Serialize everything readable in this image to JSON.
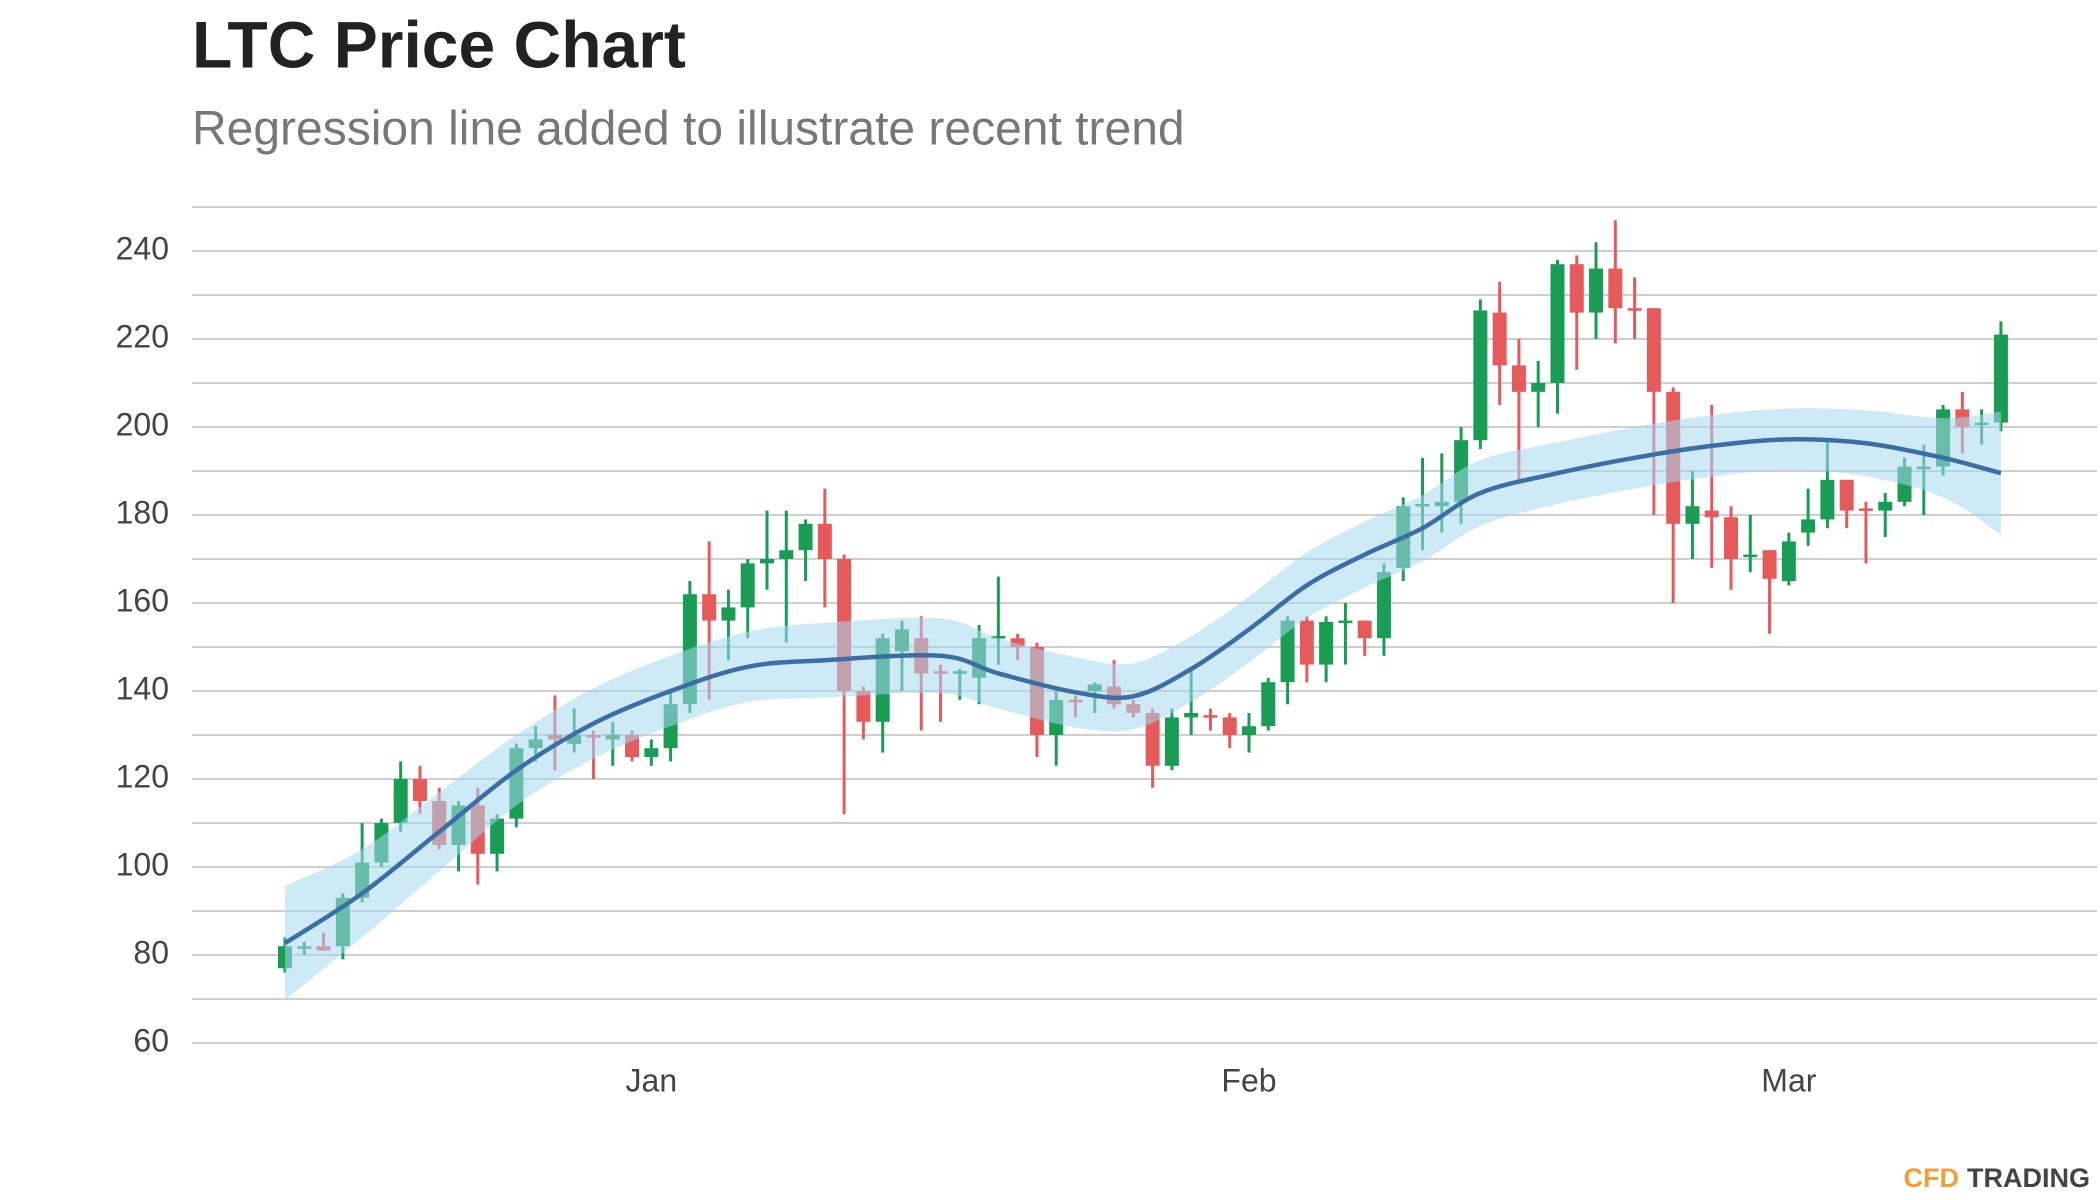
{
  "chart_data": {
    "type": "candlestick",
    "title": "LTC Price Chart",
    "subtitle": "Regression line added to illustrate recent trend",
    "brand": [
      "CFD",
      "TRADING"
    ],
    "categories": [
      null,
      null,
      null,
      null,
      null,
      null,
      null,
      null,
      null,
      null,
      null,
      null,
      null,
      null,
      null,
      null,
      null,
      null,
      null,
      "Jan",
      null,
      null,
      null,
      null,
      null,
      null,
      null,
      null,
      null,
      null,
      null,
      null,
      null,
      null,
      null,
      null,
      null,
      null,
      null,
      null,
      null,
      null,
      null,
      null,
      null,
      null,
      null,
      null,
      null,
      null,
      "Feb",
      null,
      null,
      null,
      null,
      null,
      null,
      null,
      null,
      null,
      null,
      null,
      null,
      null,
      null,
      null,
      null,
      null,
      null,
      null,
      null,
      null,
      null,
      null,
      null,
      null,
      null,
      null,
      "Mar",
      null,
      null,
      null,
      null,
      null,
      null,
      null,
      null,
      null,
      null,
      null
    ],
    "open": [
      77,
      81.5,
      82,
      82,
      93,
      101,
      110,
      120,
      115,
      105,
      114,
      103,
      111,
      127,
      130,
      128,
      130,
      129,
      130,
      125,
      127,
      137,
      162,
      156,
      159,
      169,
      170,
      172,
      178,
      170,
      140,
      133,
      149,
      152,
      144.5,
      144,
      143,
      152,
      152,
      150,
      130,
      138,
      140,
      141,
      137,
      135,
      123,
      134,
      134.5,
      134,
      130,
      132,
      142,
      156,
      146,
      155.5,
      156,
      152,
      168,
      182,
      182,
      183,
      197,
      226,
      214,
      208,
      210,
      237,
      226,
      236,
      227,
      227,
      208,
      178,
      181,
      179.5,
      170.5,
      172,
      165,
      176,
      179,
      188,
      181.5,
      181,
      183,
      190.5,
      191,
      204,
      200.5,
      201
    ],
    "high": [
      84,
      83,
      85,
      94,
      110,
      111,
      124,
      123,
      118,
      115,
      118,
      112,
      128,
      132,
      139,
      136,
      131,
      133,
      131,
      129,
      140,
      165,
      174,
      163,
      170,
      181,
      181,
      179,
      186,
      171,
      141,
      153,
      156,
      157,
      146,
      145,
      155,
      166,
      153,
      151,
      140,
      139,
      142,
      147,
      138,
      136,
      136,
      145,
      136,
      135,
      135,
      143,
      157,
      157,
      157,
      160,
      156,
      169,
      184,
      193,
      194,
      200,
      229,
      233,
      220,
      215,
      238,
      239,
      242,
      247,
      234,
      227,
      209,
      190,
      205,
      182,
      180,
      172,
      176,
      186,
      197,
      188,
      183,
      185,
      193,
      196,
      205,
      208,
      204,
      224
    ],
    "low": [
      76,
      80,
      81,
      79,
      92,
      100,
      108,
      112,
      104,
      99,
      96,
      99,
      109,
      124,
      122,
      126,
      120,
      123,
      124,
      123,
      124,
      135,
      138,
      147,
      152,
      163,
      151,
      165,
      159,
      112,
      129,
      126,
      140,
      131,
      133,
      138,
      137,
      146,
      147,
      125,
      123,
      134,
      135,
      136,
      134,
      118,
      122,
      130,
      131,
      127,
      126,
      131,
      137,
      142,
      142,
      146,
      148,
      148,
      165,
      172,
      176,
      178,
      195,
      205,
      187,
      200,
      203,
      213,
      220,
      219,
      220,
      180,
      160,
      170,
      168,
      163,
      167,
      153,
      164,
      173,
      177,
      177,
      169,
      175,
      182,
      180,
      189,
      194,
      196,
      199
    ],
    "close": [
      82,
      82,
      81,
      93,
      101,
      110,
      120,
      115,
      105,
      114,
      103,
      111,
      127,
      129,
      129,
      130,
      129.5,
      130,
      125,
      127,
      137,
      162,
      156,
      159,
      169,
      170,
      172,
      178,
      170,
      140,
      133,
      152,
      154,
      144,
      144,
      144.5,
      152,
      152.5,
      150,
      130,
      138,
      137.5,
      141.5,
      137,
      135,
      123,
      134,
      135,
      134,
      130,
      132,
      142,
      156,
      146,
      155.7,
      156,
      152,
      167,
      182,
      182.5,
      183,
      197,
      226.5,
      214,
      208,
      210,
      237,
      226,
      236,
      227,
      226.5,
      208,
      178,
      182,
      179.5,
      170,
      171,
      165.5,
      174,
      179,
      188,
      181,
      181,
      183,
      191,
      191,
      204,
      200,
      201,
      221
    ],
    "up_color": "#1a9c55",
    "down_color": "#e55b5b",
    "regression": {
      "color": "#3a6ea5",
      "band_color": "#a8d8f0",
      "x": [
        0,
        4,
        8,
        12,
        16,
        20,
        24,
        28,
        34,
        37,
        41,
        44,
        47,
        50,
        53,
        56,
        59,
        62,
        66,
        70,
        74,
        78,
        82,
        86,
        89
      ],
      "values": [
        82.7,
        94,
        108,
        122,
        132.6,
        140,
        145.5,
        147,
        148,
        144,
        139.7,
        138.8,
        145,
        154,
        164,
        171,
        177,
        185,
        189.5,
        193,
        195.7,
        197.2,
        196.3,
        193,
        189.5
      ],
      "upper": [
        95.7,
        104,
        117,
        130,
        140.6,
        148,
        153.5,
        155.5,
        156.5,
        152,
        147.7,
        146.3,
        152.5,
        161.5,
        171.5,
        178.5,
        184.5,
        192.5,
        196.5,
        200,
        202.7,
        204.2,
        203.8,
        202,
        203.5
      ],
      "lower": [
        69.7,
        84,
        99,
        114,
        124.6,
        132,
        137.5,
        138.5,
        139.5,
        136,
        131.7,
        131.3,
        137.5,
        146.5,
        156.5,
        163.5,
        169.5,
        177.5,
        182.5,
        186,
        188.7,
        190.2,
        188.8,
        184,
        175.5
      ]
    },
    "ylim": [
      60,
      250
    ],
    "yticks": [
      60,
      80,
      100,
      120,
      140,
      160,
      180,
      200,
      220,
      240
    ],
    "ygrid": [
      60,
      70,
      80,
      90,
      100,
      110,
      120,
      130,
      140,
      150,
      160,
      170,
      180,
      190,
      200,
      210,
      220,
      230,
      240,
      250
    ],
    "grid": true
  }
}
